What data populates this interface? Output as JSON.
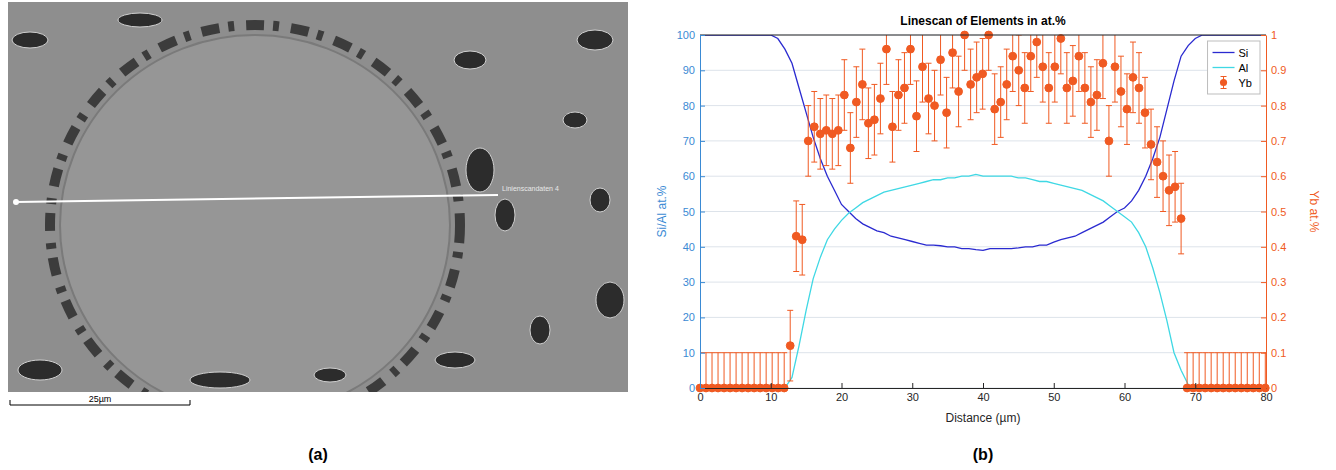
{
  "figure": {
    "image_panel": {
      "label": "(a)",
      "scale_bar": "25µm",
      "line_label": "Linienscandaten 4"
    },
    "chart_panel_label": "(b)"
  },
  "chart_data": {
    "type": "line",
    "title": "Linescan of Elements in at.%",
    "x_label": "Distance (µm)",
    "y_label": "Si/Al at.%",
    "y2_label": "Yb at.%",
    "xlim": [
      0,
      80
    ],
    "xticks": [
      0,
      10,
      20,
      30,
      40,
      50,
      60,
      70,
      80
    ],
    "ylim": [
      0,
      100
    ],
    "yticks": [
      0,
      10,
      20,
      30,
      40,
      50,
      60,
      70,
      80,
      90,
      100
    ],
    "y2lim": [
      0,
      1
    ],
    "y2ticks": [
      0,
      0.1,
      0.2,
      0.3,
      0.4,
      0.5,
      0.6,
      0.7,
      0.8,
      0.9,
      1
    ],
    "grid": true,
    "legend": "upper right",
    "series": [
      {
        "name": "Si",
        "color": "#2a2ad0",
        "type": "line",
        "line_style": "solid",
        "x": [
          0,
          1,
          2,
          3,
          4,
          5,
          6,
          7,
          8,
          9,
          10,
          11,
          12,
          13,
          14,
          15,
          16,
          17,
          18,
          19,
          20,
          21,
          22,
          23,
          24,
          25,
          26,
          27,
          28,
          29,
          30,
          31,
          32,
          33,
          34,
          35,
          36,
          37,
          38,
          39,
          40,
          41,
          42,
          43,
          44,
          45,
          46,
          47,
          48,
          49,
          50,
          51,
          52,
          53,
          54,
          55,
          56,
          57,
          58,
          59,
          60,
          61,
          62,
          63,
          64,
          65,
          66,
          67,
          68,
          69,
          70,
          71,
          72,
          73,
          74,
          75,
          76,
          77,
          78,
          79,
          80
        ],
        "values": [
          100,
          100,
          100,
          100,
          100,
          100,
          100,
          100,
          100,
          100,
          100,
          99,
          96,
          92,
          85,
          78,
          71,
          65,
          60,
          56,
          52,
          50,
          48,
          46.5,
          45.5,
          44.5,
          44,
          43,
          42.5,
          42,
          41.5,
          41,
          40.5,
          40.5,
          40.3,
          40,
          40,
          39.5,
          39.5,
          39.2,
          39,
          39.5,
          39.5,
          39.5,
          39.5,
          39.7,
          40,
          40,
          40.5,
          40.5,
          41.3,
          42,
          42.5,
          43,
          44,
          45,
          46,
          47,
          48.5,
          50,
          51,
          53,
          56,
          60,
          65,
          71,
          79,
          87,
          94,
          97,
          99,
          100,
          100,
          100,
          100,
          100,
          100,
          100,
          100,
          100,
          100
        ]
      },
      {
        "name": "Al",
        "color": "#3fd8e4",
        "type": "line",
        "line_style": "solid",
        "x": [
          0,
          1,
          2,
          3,
          4,
          5,
          6,
          7,
          8,
          9,
          10,
          11,
          12,
          13,
          14,
          15,
          16,
          17,
          18,
          19,
          20,
          21,
          22,
          23,
          24,
          25,
          26,
          27,
          28,
          29,
          30,
          31,
          32,
          33,
          34,
          35,
          36,
          37,
          38,
          39,
          40,
          41,
          42,
          43,
          44,
          45,
          46,
          47,
          48,
          49,
          50,
          51,
          52,
          53,
          54,
          55,
          56,
          57,
          58,
          59,
          60,
          61,
          62,
          63,
          64,
          65,
          66,
          67,
          68,
          69,
          70,
          71,
          72,
          73,
          74,
          75,
          76,
          77,
          78,
          79,
          80
        ],
        "values": [
          0,
          0,
          0,
          0,
          0,
          0,
          0,
          0,
          0,
          0,
          0,
          0,
          0,
          3,
          12,
          22,
          31,
          37,
          42,
          45,
          47.5,
          49.5,
          51,
          52.5,
          53.5,
          54.5,
          55.5,
          56,
          56.5,
          57,
          57.5,
          58,
          58.5,
          59,
          59,
          59.5,
          59.5,
          60,
          60,
          60.5,
          60,
          60,
          60,
          60,
          60,
          59.5,
          59.5,
          59,
          58.5,
          58.5,
          58,
          57.5,
          57,
          56.5,
          56,
          55,
          54,
          53,
          51.5,
          50,
          48.5,
          47,
          44,
          40,
          34,
          27,
          19,
          10,
          5,
          1,
          0,
          0,
          0,
          0,
          0,
          0,
          0,
          0,
          0,
          0,
          0
        ]
      },
      {
        "name": "Yb",
        "color": "#f05a22",
        "type": "scatter",
        "marker": "circle",
        "axis": "y2",
        "x": [
          0,
          0.85,
          1.7,
          2.55,
          3.4,
          4.25,
          5.1,
          5.95,
          6.8,
          7.65,
          8.5,
          9.35,
          10.2,
          11.05,
          11.9,
          12.75,
          13.6,
          14.45,
          15.3,
          16.15,
          17,
          17.85,
          18.7,
          19.55,
          20.4,
          21.25,
          22.1,
          22.95,
          23.8,
          24.65,
          25.5,
          26.35,
          27.2,
          28.05,
          28.9,
          29.75,
          30.6,
          31.45,
          32.3,
          33.15,
          34,
          34.85,
          35.7,
          36.55,
          37.4,
          38.25,
          39.1,
          39.95,
          40.8,
          41.65,
          42.5,
          43.35,
          44.2,
          45.05,
          45.9,
          46.75,
          47.6,
          48.45,
          49.3,
          50.15,
          51,
          51.85,
          52.7,
          53.55,
          54.4,
          55.25,
          56.1,
          56.95,
          57.8,
          58.65,
          59.5,
          60.35,
          61.2,
          62.05,
          62.9,
          63.75,
          64.6,
          65.45,
          66.3,
          67.15,
          68,
          68.85,
          69.7,
          70.55,
          71.4,
          72.25,
          73.1,
          73.95,
          74.8,
          75.65,
          76.5,
          77.35,
          78.2,
          79.05,
          79.9
        ],
        "values": [
          0,
          0,
          0,
          0,
          0,
          0,
          0,
          0,
          0,
          0,
          0,
          0,
          0,
          0,
          0,
          0.12,
          0.43,
          0.42,
          0.7,
          0.74,
          0.72,
          0.73,
          0.72,
          0.73,
          0.83,
          0.68,
          0.81,
          0.86,
          0.75,
          0.76,
          0.82,
          0.96,
          0.74,
          0.83,
          0.85,
          0.96,
          0.77,
          0.91,
          0.82,
          0.8,
          0.93,
          0.78,
          0.95,
          0.84,
          1,
          0.86,
          0.88,
          0.89,
          1,
          0.79,
          0.81,
          0.86,
          0.94,
          0.9,
          0.85,
          0.94,
          0.98,
          0.91,
          0.85,
          0.91,
          0.99,
          0.85,
          0.87,
          0.94,
          0.85,
          0.81,
          0.83,
          0.92,
          0.7,
          0.91,
          0.84,
          0.79,
          0.88,
          0.85,
          0.78,
          0.69,
          0.64,
          0.6,
          0.56,
          0.57,
          0.48,
          0,
          0,
          0,
          0,
          0,
          0,
          0,
          0,
          0,
          0,
          0,
          0,
          0,
          0
        ],
        "errors": [
          0.1,
          0.1,
          0.1,
          0.1,
          0.1,
          0.1,
          0.1,
          0.1,
          0.1,
          0.1,
          0.1,
          0.1,
          0.1,
          0.1,
          0.1,
          0.1,
          0.1,
          0.1,
          0.1,
          0.1,
          0.1,
          0.1,
          0.1,
          0.1,
          0.1,
          0.1,
          0.1,
          0.1,
          0.1,
          0.1,
          0.1,
          0.1,
          0.1,
          0.1,
          0.1,
          0.1,
          0.1,
          0.1,
          0.1,
          0.1,
          0.1,
          0.1,
          0.1,
          0.1,
          0.1,
          0.1,
          0.1,
          0.1,
          0.1,
          0.1,
          0.1,
          0.1,
          0.1,
          0.1,
          0.1,
          0.1,
          0.1,
          0.1,
          0.1,
          0.1,
          0.1,
          0.1,
          0.1,
          0.1,
          0.1,
          0.1,
          0.1,
          0.1,
          0.1,
          0.1,
          0.1,
          0.1,
          0.1,
          0.1,
          0.1,
          0.1,
          0.1,
          0.1,
          0.1,
          0.1,
          0.1,
          0.1,
          0.1,
          0.1,
          0.1,
          0.1,
          0.1,
          0.1,
          0.1,
          0.1,
          0.1,
          0.1,
          0.1,
          0.1,
          0.1
        ]
      }
    ]
  }
}
